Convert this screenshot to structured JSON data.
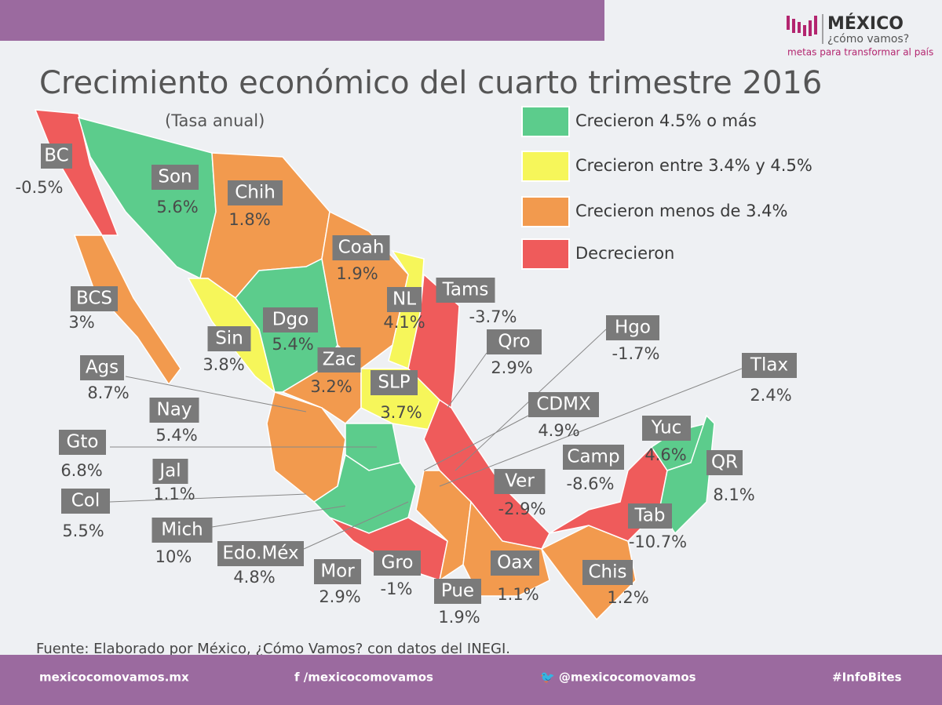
{
  "header": {
    "logo_title": "MÉXICO",
    "logo_subtitle": "¿cómo vamos?",
    "logo_tagline": "metas para transformar al país"
  },
  "title": "Crecimiento económico del cuarto trimestre 2016",
  "subtitle": "(Tasa anual)",
  "legend": [
    "Crecieron 4.5% o más",
    "Crecieron entre 3.4% y 4.5%",
    "Crecieron menos de 3.4%",
    "Decrecieron"
  ],
  "states": [
    {
      "name": "BC",
      "value": "-0.5%"
    },
    {
      "name": "Son",
      "value": "5.6%"
    },
    {
      "name": "Chih",
      "value": "1.8%"
    },
    {
      "name": "Coah",
      "value": "1.9%"
    },
    {
      "name": "BCS",
      "value": "3%"
    },
    {
      "name": "NL",
      "value": "4.1%"
    },
    {
      "name": "Tams",
      "value": "-3.7%"
    },
    {
      "name": "Dgo",
      "value": "5.4%"
    },
    {
      "name": "Sin",
      "value": "3.8%"
    },
    {
      "name": "Hgo",
      "value": "-1.7%"
    },
    {
      "name": "Qro",
      "value": "2.9%"
    },
    {
      "name": "Tlax",
      "value": "2.4%"
    },
    {
      "name": "Ags",
      "value": "8.7%"
    },
    {
      "name": "Zac",
      "value": "3.2%"
    },
    {
      "name": "SLP",
      "value": "3.7%"
    },
    {
      "name": "Nay",
      "value": "5.4%"
    },
    {
      "name": "CDMX",
      "value": "4.9%"
    },
    {
      "name": "Yuc",
      "value": "4.6%"
    },
    {
      "name": "Gto",
      "value": "6.8%"
    },
    {
      "name": "Jal",
      "value": "1.1%"
    },
    {
      "name": "Camp",
      "value": "-8.6%"
    },
    {
      "name": "QR",
      "value": "8.1%"
    },
    {
      "name": "Col",
      "value": "5.5%"
    },
    {
      "name": "Ver",
      "value": "-2.9%"
    },
    {
      "name": "Tab",
      "value": "-10.7%"
    },
    {
      "name": "Mich",
      "value": "10%"
    },
    {
      "name": "Edo.Méx",
      "value": "4.8%"
    },
    {
      "name": "Mor",
      "value": "2.9%"
    },
    {
      "name": "Gro",
      "value": "-1%"
    },
    {
      "name": "Oax",
      "value": "1.1%"
    },
    {
      "name": "Pue",
      "value": "1.9%"
    },
    {
      "name": "Chis",
      "value": "1.2%"
    }
  ],
  "source": "Fuente: Elaborado por México, ¿Cómo Vamos? con datos del INEGI.",
  "footer": [
    "mexicocomovamos.mx",
    "f  /mexicocomovamos",
    "🐦 @mexicocomovamos",
    "#InfoBites"
  ]
}
